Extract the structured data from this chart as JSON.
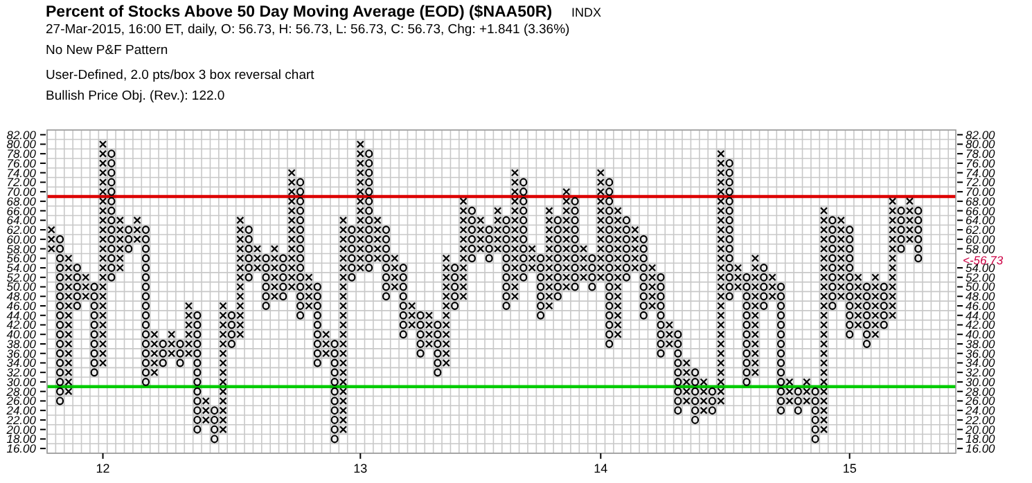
{
  "chart_data": {
    "type": "bar",
    "title": "Percent of Stocks Above 50 Day Moving Average (EOD) ($NAA50R)",
    "subtitle": "INDX",
    "annotations": [
      "27-Mar-2015, 16:00 ET, daily, O: 56.73, H: 56.73, L: 56.73, C: 56.73, Chg: +1.841 (3.36%)",
      "No New P&F Pattern",
      "User-Defined, 2.0 pts/box 3 box reversal chart",
      "Bullish Price Obj. (Rev.): 122.0",
      "<-56.73"
    ],
    "categories": [
      null,
      null,
      null,
      null,
      null,
      null,
      "12",
      null,
      null,
      null,
      null,
      null,
      null,
      null,
      null,
      null,
      null,
      null,
      null,
      null,
      null,
      null,
      null,
      null,
      null,
      null,
      null,
      null,
      null,
      null,
      null,
      null,
      null,
      null,
      null,
      null,
      "13",
      null,
      null,
      null,
      null,
      null,
      null,
      null,
      null,
      null,
      null,
      null,
      null,
      null,
      null,
      null,
      null,
      null,
      null,
      null,
      null,
      null,
      null,
      null,
      null,
      null,
      null,
      null,
      "14",
      null,
      null,
      null,
      null,
      null,
      null,
      null,
      null,
      null,
      null,
      null,
      null,
      null,
      null,
      null,
      null,
      null,
      null,
      null,
      null,
      null,
      null,
      null,
      null,
      null,
      null,
      null,
      null,
      "15",
      null,
      null,
      null,
      null,
      null,
      null,
      null,
      null
    ],
    "series": [
      {
        "color": "#000000",
        "marker": "cross",
        "values": [
          6,
          null,
          30,
          null,
          6,
          null,
          48,
          null,
          12,
          null,
          6,
          null,
          10,
          null,
          6,
          null,
          12,
          null,
          6,
          null,
          28,
          null,
          26,
          null,
          6,
          null,
          12,
          null,
          26,
          null,
          8,
          null,
          6,
          null,
          46,
          null,
          28,
          null,
          10,
          null,
          8,
          null,
          6,
          null,
          8,
          null,
          24,
          null,
          22,
          null,
          8,
          null,
          10,
          null,
          28,
          null,
          6,
          null,
          22,
          null,
          22,
          null,
          8,
          null,
          24,
          null,
          28,
          null,
          10,
          null,
          10,
          null,
          6,
          null,
          10,
          null,
          8,
          null,
          54,
          null,
          6,
          null,
          26,
          null,
          6,
          null,
          6,
          null,
          6,
          null,
          48,
          null,
          18,
          null,
          12,
          null,
          14,
          null,
          26,
          null,
          10,
          null
        ],
        "base": [
          57,
          null,
          27,
          null,
          47,
          null,
          33,
          null,
          53,
          null,
          59,
          null,
          31,
          null,
          35,
          null,
          35,
          null,
          21,
          null,
          19,
          null,
          39,
          null,
          53,
          null,
          47,
          null,
          49,
          null,
          45,
          null,
          35,
          null,
          19,
          null,
          53,
          null,
          55,
          null,
          49,
          null,
          41,
          null,
          37,
          null,
          33,
          null,
          47,
          null,
          57,
          null,
          57,
          null,
          47,
          null,
          53,
          null,
          45,
          null,
          49,
          null,
          51,
          null,
          51,
          null,
          39,
          null,
          53,
          null,
          45,
          null,
          37,
          null,
          25,
          null,
          23,
          null,
          25,
          null,
          49,
          null,
          31,
          null,
          47,
          null,
          25,
          null,
          25,
          null,
          19,
          null,
          47,
          null,
          41,
          null,
          39,
          null,
          43,
          null,
          59,
          null
        ]
      },
      {
        "color": "#000000",
        "marker": "circle",
        "values": [
          null,
          36,
          null,
          10,
          null,
          20,
          null,
          28,
          null,
          6,
          null,
          34,
          null,
          6,
          null,
          6,
          null,
          26,
          null,
          8,
          null,
          8,
          null,
          12,
          null,
          12,
          null,
          10,
          null,
          30,
          null,
          18,
          null,
          22,
          null,
          12,
          null,
          26,
          null,
          16,
          null,
          16,
          null,
          10,
          null,
          12,
          null,
          10,
          null,
          12,
          null,
          8,
          null,
          20,
          null,
          22,
          null,
          14,
          null,
          18,
          null,
          20,
          null,
          8,
          null,
          36,
          null,
          14,
          null,
          18,
          null,
          18,
          null,
          18,
          null,
          12,
          null,
          6,
          null,
          30,
          null,
          24,
          null,
          10,
          null,
          28,
          null,
          6,
          null,
          12,
          null,
          20,
          null,
          24,
          null,
          14,
          null,
          10,
          null,
          10,
          null,
          12
        ],
        "base": [
          null,
          25,
          null,
          45,
          null,
          31,
          null,
          51,
          null,
          57,
          null,
          29,
          null,
          33,
          null,
          33,
          null,
          19,
          null,
          17,
          null,
          37,
          null,
          51,
          null,
          45,
          null,
          47,
          null,
          43,
          null,
          33,
          null,
          17,
          null,
          51,
          null,
          53,
          null,
          47,
          null,
          39,
          null,
          35,
          null,
          31,
          null,
          45,
          null,
          55,
          null,
          55,
          null,
          45,
          null,
          51,
          null,
          43,
          null,
          47,
          null,
          49,
          null,
          49,
          null,
          37,
          null,
          51,
          null,
          43,
          null,
          35,
          null,
          23,
          null,
          21,
          null,
          23,
          null,
          47,
          null,
          29,
          null,
          45,
          null,
          23,
          null,
          23,
          null,
          17,
          null,
          45,
          null,
          39,
          null,
          37,
          null,
          41,
          null,
          57,
          null,
          55
        ]
      }
    ],
    "ylim": [
      15,
      83
    ],
    "yticks": [
      {
        "value": 82,
        "label": "82.00"
      },
      {
        "value": 80,
        "label": "80.00"
      },
      {
        "value": 78,
        "label": "78.00"
      },
      {
        "value": 76,
        "label": "76.00"
      },
      {
        "value": 74,
        "label": "74.00"
      },
      {
        "value": 72,
        "label": "72.00"
      },
      {
        "value": 70,
        "label": "70.00"
      },
      {
        "value": 68,
        "label": "68.00"
      },
      {
        "value": 66,
        "label": "66.00"
      },
      {
        "value": 64,
        "label": "64.00"
      },
      {
        "value": 62,
        "label": "62.00"
      },
      {
        "value": 60,
        "label": "60.00"
      },
      {
        "value": 58,
        "label": "58.00"
      },
      {
        "value": 56,
        "label": "56.00"
      },
      {
        "value": 54,
        "label": "54.00"
      },
      {
        "value": 52,
        "label": "52.00"
      },
      {
        "value": 50,
        "label": "50.00"
      },
      {
        "value": 48,
        "label": "48.00"
      },
      {
        "value": 46,
        "label": "46.00"
      },
      {
        "value": 44,
        "label": "44.00"
      },
      {
        "value": 42,
        "label": "42.00"
      },
      {
        "value": 40,
        "label": "40.00"
      },
      {
        "value": 38,
        "label": "38.00"
      },
      {
        "value": 36,
        "label": "36.00"
      },
      {
        "value": 34,
        "label": "34.00"
      },
      {
        "value": 32,
        "label": "32.00"
      },
      {
        "value": 30,
        "label": "30.00"
      },
      {
        "value": 28,
        "label": "28.00"
      },
      {
        "value": 26,
        "label": "26.00"
      },
      {
        "value": 24,
        "label": "24.00"
      },
      {
        "value": 22,
        "label": "22.00"
      },
      {
        "value": 20,
        "label": "20.00"
      },
      {
        "value": 18,
        "label": "18.00"
      },
      {
        "value": 16,
        "label": "16.00"
      }
    ],
    "y2lim": [
      15,
      83
    ],
    "y2ticks": [
      {
        "value": 82,
        "label": "82.00"
      },
      {
        "value": 80,
        "label": "80.00"
      },
      {
        "value": 78,
        "label": "78.00"
      },
      {
        "value": 76,
        "label": "76.00"
      },
      {
        "value": 74,
        "label": "74.00"
      },
      {
        "value": 72,
        "label": "72.00"
      },
      {
        "value": 70,
        "label": "70.00"
      },
      {
        "value": 68,
        "label": "68.00"
      },
      {
        "value": 66,
        "label": "66.00"
      },
      {
        "value": 64,
        "label": "64.00"
      },
      {
        "value": 62,
        "label": "62.00"
      },
      {
        "value": 60,
        "label": "60.00"
      },
      {
        "value": 58,
        "label": "58.00"
      },
      {
        "value": 54,
        "label": "54.00"
      },
      {
        "value": 52,
        "label": "52.00"
      },
      {
        "value": 50,
        "label": "50.00"
      },
      {
        "value": 48,
        "label": "48.00"
      },
      {
        "value": 46,
        "label": "46.00"
      },
      {
        "value": 44,
        "label": "44.00"
      },
      {
        "value": 42,
        "label": "42.00"
      },
      {
        "value": 40,
        "label": "40.00"
      },
      {
        "value": 38,
        "label": "38.00"
      },
      {
        "value": 36,
        "label": "36.00"
      },
      {
        "value": 34,
        "label": "34.00"
      },
      {
        "value": 32,
        "label": "32.00"
      },
      {
        "value": 30,
        "label": "30.00"
      },
      {
        "value": 28,
        "label": "28.00"
      },
      {
        "value": 26,
        "label": "26.00"
      },
      {
        "value": 24,
        "label": "24.00"
      },
      {
        "value": 22,
        "label": "22.00"
      },
      {
        "value": 20,
        "label": "20.00"
      },
      {
        "value": 18,
        "label": "18.00"
      },
      {
        "value": 16,
        "label": "16.00"
      }
    ],
    "ref_lines": [
      {
        "axis": "y",
        "value": 69,
        "color": "#dd0000"
      },
      {
        "axis": "y",
        "value": 29,
        "color": "#00cc00"
      }
    ],
    "grid": true
  }
}
